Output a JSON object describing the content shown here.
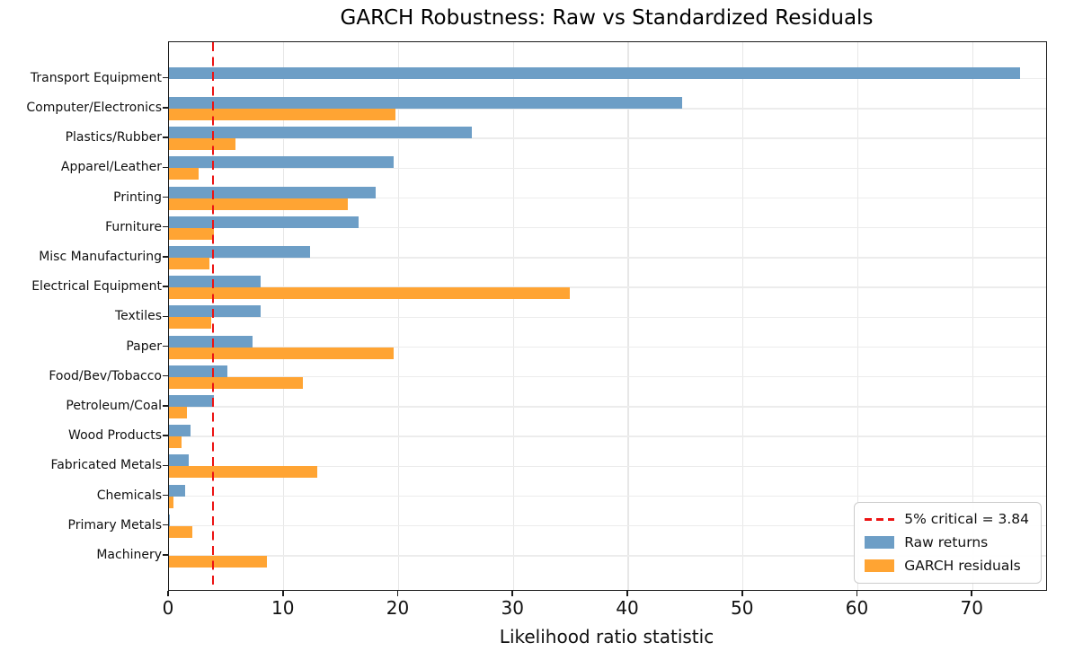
{
  "chart_data": {
    "type": "bar",
    "orientation": "horizontal",
    "title": "GARCH Robustness: Raw vs Standardized Residuals",
    "xlabel": "Likelihood ratio statistic",
    "ylabel": "",
    "categories": [
      "Transport Equipment",
      "Computer/Electronics",
      "Plastics/Rubber",
      "Apparel/Leather",
      "Printing",
      "Furniture",
      "Misc Manufacturing",
      "Electrical Equipment",
      "Textiles",
      "Paper",
      "Food/Bev/Tobacco",
      "Petroleum/Coal",
      "Wood Products",
      "Fabricated Metals",
      "Chemicals",
      "Primary Metals",
      "Machinery"
    ],
    "series": [
      {
        "name": "Raw returns",
        "color": "#6d9ec6",
        "values": [
          74.1,
          44.7,
          26.4,
          19.6,
          18.0,
          16.5,
          12.3,
          8.0,
          8.0,
          7.3,
          5.1,
          3.9,
          1.9,
          1.7,
          1.4,
          0.1,
          0.0
        ]
      },
      {
        "name": "GARCH residuals",
        "color": "#ffa433",
        "values": [
          0.0,
          19.7,
          5.8,
          2.6,
          15.6,
          3.9,
          3.5,
          34.9,
          3.7,
          19.6,
          11.7,
          1.6,
          1.1,
          12.9,
          0.4,
          2.0,
          8.5
        ]
      }
    ],
    "critical_line": {
      "value": 3.84,
      "label": "5% critical = 3.84",
      "color": "#ec1313",
      "style": "dashed"
    },
    "x_ticks": [
      0,
      10,
      20,
      30,
      40,
      50,
      60,
      70
    ],
    "xlim": [
      0,
      76.4
    ],
    "grid": true,
    "legend_position": "lower right"
  }
}
